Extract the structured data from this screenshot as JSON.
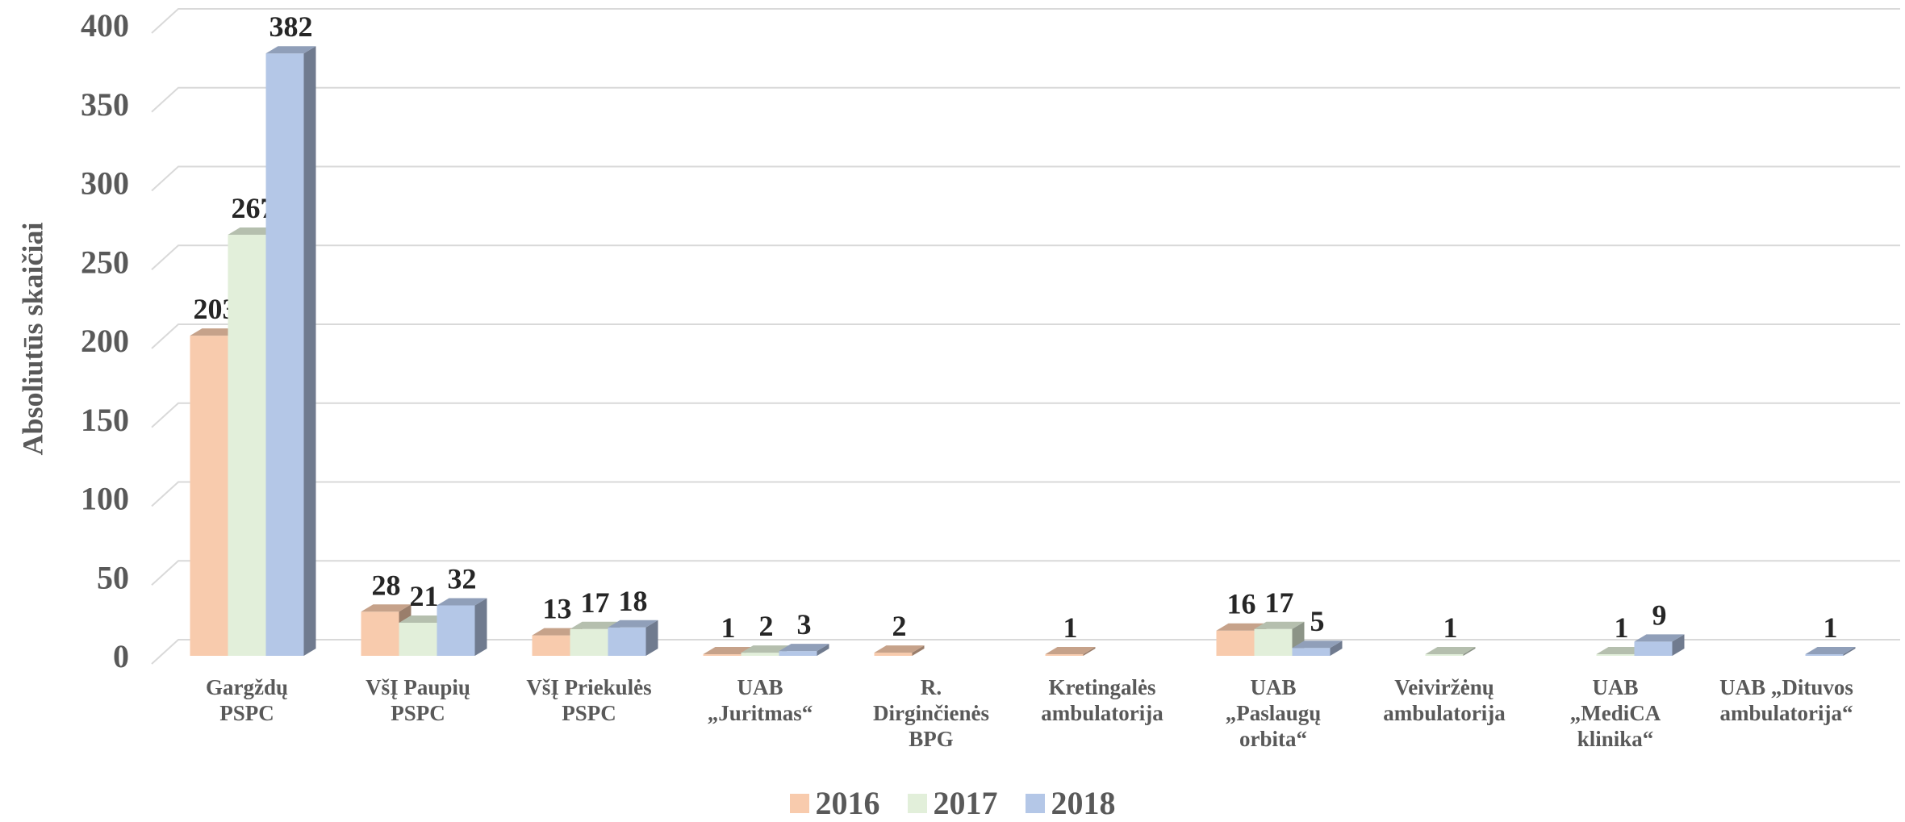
{
  "chart_data": {
    "type": "bar3d",
    "y_label": "Absoliutūs skaičiai",
    "categories": [
      "Gargždų\nPSPC",
      "VšĮ Paupių\nPSPC",
      "VšĮ Priekulės\nPSPC",
      "UAB\n„Juritmas“",
      "R.\nDirginčienės\nBPG",
      "Kretingalės\nambulatorija",
      "UAB\n„Paslaugų\norbita“",
      "Veiviržėnų\nambulatorija",
      "UAB\n„MediCA\nklinika“",
      "UAB „Dituvos\nambulatorija“"
    ],
    "series": [
      {
        "name": "2016",
        "color": "#f8cbad",
        "values": [
          203,
          28,
          13,
          1,
          2,
          1,
          16,
          null,
          null,
          null
        ]
      },
      {
        "name": "2017",
        "color": "#e2efda",
        "values": [
          267,
          21,
          17,
          2,
          null,
          null,
          17,
          1,
          1,
          null
        ]
      },
      {
        "name": "2018",
        "color": "#b4c7e7",
        "values": [
          382,
          32,
          18,
          3,
          null,
          null,
          5,
          null,
          9,
          1
        ]
      }
    ],
    "ylim": [
      0,
      400
    ],
    "yticks": [
      0,
      50,
      100,
      150,
      200,
      250,
      300,
      350,
      400
    ],
    "grid": true,
    "legend": "bottom"
  }
}
